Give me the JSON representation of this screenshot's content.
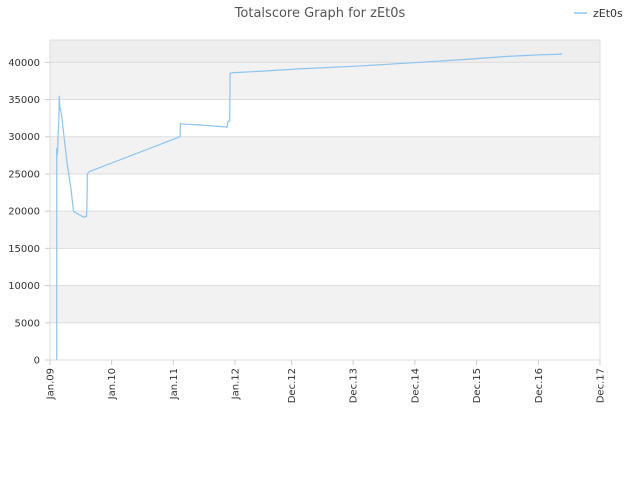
{
  "chart_data": {
    "type": "line",
    "title": "Totalscore Graph for zEt0s",
    "legend": {
      "position": "top-right",
      "entries": [
        "zEt0s"
      ]
    },
    "xlabel": "",
    "ylabel": "",
    "ylim": [
      0,
      43000
    ],
    "xlim": [
      "2009-01-01",
      "2017-12-01"
    ],
    "y_ticks": [
      0,
      5000,
      10000,
      15000,
      20000,
      25000,
      30000,
      35000,
      40000
    ],
    "y_tick_labels": [
      "0",
      "5000",
      "10000",
      "15000",
      "20000",
      "25000",
      "30000",
      "35000",
      "40000"
    ],
    "x_ticks": [
      "2009-01-01",
      "2010-01-01",
      "2011-01-01",
      "2012-01-01",
      "2012-12-01",
      "2013-12-01",
      "2014-12-01",
      "2015-12-01",
      "2016-12-01",
      "2017-12-01"
    ],
    "x_tick_labels": [
      "Jan.09",
      "Jan.10",
      "Jan.11",
      "Jan.12",
      "Dec.12",
      "Dec.13",
      "Dec.14",
      "Dec.15",
      "Dec.16",
      "Dec.17"
    ],
    "grid": true,
    "colors": {
      "line": "#8cc4f0",
      "band": "#f2f2f2",
      "top_band": "#eeeeee",
      "grid": "#dddddd"
    },
    "series": [
      {
        "name": "zEt0s",
        "points": [
          [
            "2009-02-10",
            0
          ],
          [
            "2009-02-10",
            28500
          ],
          [
            "2009-02-13",
            27500
          ],
          [
            "2009-02-15",
            28000
          ],
          [
            "2009-02-18",
            30500
          ],
          [
            "2009-02-20",
            31000
          ],
          [
            "2009-02-22",
            32000
          ],
          [
            "2009-02-25",
            35500
          ],
          [
            "2009-02-28",
            34000
          ],
          [
            "2009-03-10",
            33000
          ],
          [
            "2009-03-25",
            30000
          ],
          [
            "2009-04-15",
            26000
          ],
          [
            "2009-05-05",
            23000
          ],
          [
            "2009-05-20",
            20000
          ],
          [
            "2009-06-01",
            19800
          ],
          [
            "2009-07-20",
            19200
          ],
          [
            "2009-08-05",
            19300
          ],
          [
            "2009-08-08",
            21000
          ],
          [
            "2009-08-10",
            25000
          ],
          [
            "2009-08-20",
            25300
          ],
          [
            "2011-02-10",
            30000
          ],
          [
            "2011-02-12",
            31800
          ],
          [
            "2011-03-01",
            31700
          ],
          [
            "2011-06-01",
            31600
          ],
          [
            "2011-11-15",
            31300
          ],
          [
            "2011-11-20",
            32000
          ],
          [
            "2011-12-01",
            32200
          ],
          [
            "2011-12-03",
            38500
          ],
          [
            "2011-12-15",
            38600
          ],
          [
            "2012-06-01",
            38800
          ],
          [
            "2013-01-01",
            39100
          ],
          [
            "2014-01-01",
            39500
          ],
          [
            "2015-01-01",
            40000
          ],
          [
            "2015-10-01",
            40400
          ],
          [
            "2016-06-01",
            40800
          ],
          [
            "2016-12-01",
            41000
          ],
          [
            "2017-04-20",
            41100
          ]
        ]
      }
    ]
  }
}
